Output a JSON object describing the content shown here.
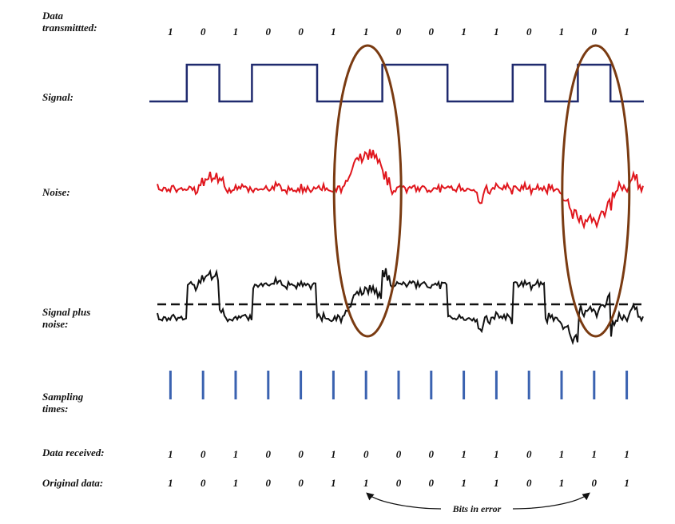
{
  "labels": {
    "data_transmitted_line1": "Data",
    "data_transmitted_line2": "transmittted:",
    "signal": "Signal:",
    "noise": "Noise:",
    "signal_plus_noise_line1": "Signal plus",
    "signal_plus_noise_line2": "noise:",
    "sampling_times_line1": "Sampling",
    "sampling_times_line2": "times:",
    "data_received": "Data received:",
    "original_data": "Original data:"
  },
  "bits_in_error_label": "Bits in error",
  "bits": {
    "transmitted": [
      "1",
      "0",
      "1",
      "0",
      "0",
      "1",
      "1",
      "0",
      "0",
      "1",
      "1",
      "0",
      "1",
      "0",
      "1"
    ],
    "received": [
      "1",
      "0",
      "1",
      "0",
      "0",
      "1",
      "0",
      "0",
      "0",
      "1",
      "1",
      "0",
      "1",
      "1",
      "1"
    ],
    "original": [
      "1",
      "0",
      "1",
      "0",
      "0",
      "1",
      "1",
      "0",
      "0",
      "1",
      "1",
      "0",
      "1",
      "0",
      "1"
    ]
  },
  "error_bit_indices": [
    6,
    13
  ],
  "colors": {
    "signal": "#1f2a6e",
    "noise": "#e0161d",
    "signal_plus_noise": "#111111",
    "threshold": "#111111",
    "sampling": "#3a62b0",
    "error_ellipse": "#7a3b12",
    "text": "#111111"
  }
}
